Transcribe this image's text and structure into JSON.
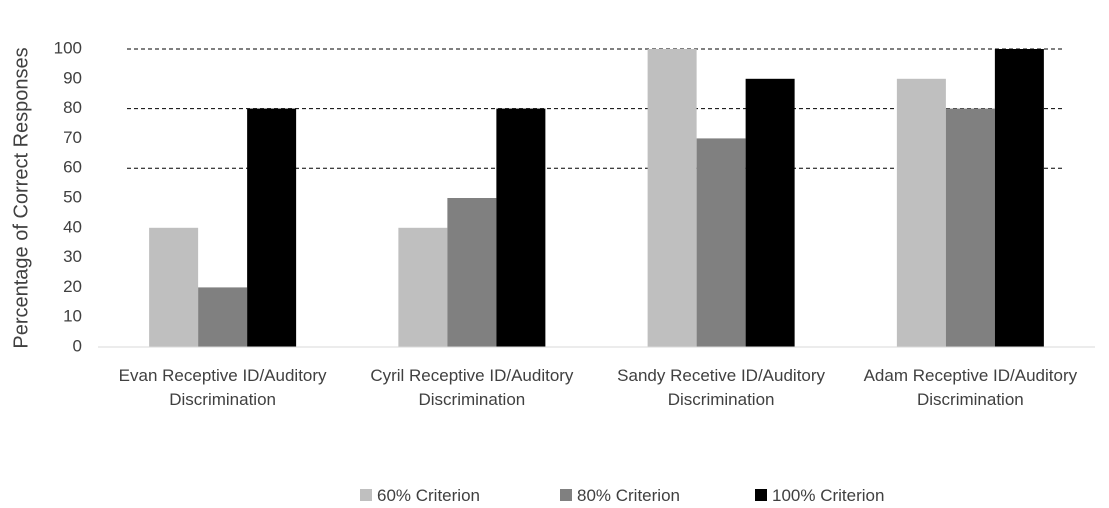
{
  "chart_data": {
    "type": "bar",
    "y_label": "Percentage of Correct Responses",
    "categories": [
      "Evan Receptive ID/Auditory Discrimination",
      "Cyril Receptive ID/Auditory Discrimination",
      "Sandy Recetive ID/Auditory Discrimination",
      "Adam Receptive ID/Auditory Discrimination"
    ],
    "series": [
      {
        "name": "60% Criterion",
        "color": "#bfbfbf",
        "values": [
          40,
          40,
          100,
          90
        ]
      },
      {
        "name": "80% Criterion",
        "color": "#808080",
        "values": [
          20,
          50,
          70,
          80
        ]
      },
      {
        "name": "100% Criterion",
        "color": "#000000",
        "values": [
          80,
          80,
          90,
          100
        ]
      }
    ],
    "ylim": [
      0,
      100
    ],
    "yticks": [
      0,
      10,
      20,
      30,
      40,
      50,
      60,
      70,
      80,
      90,
      100
    ],
    "reference_lines": [
      60,
      80,
      100
    ],
    "legend": "bottom"
  }
}
